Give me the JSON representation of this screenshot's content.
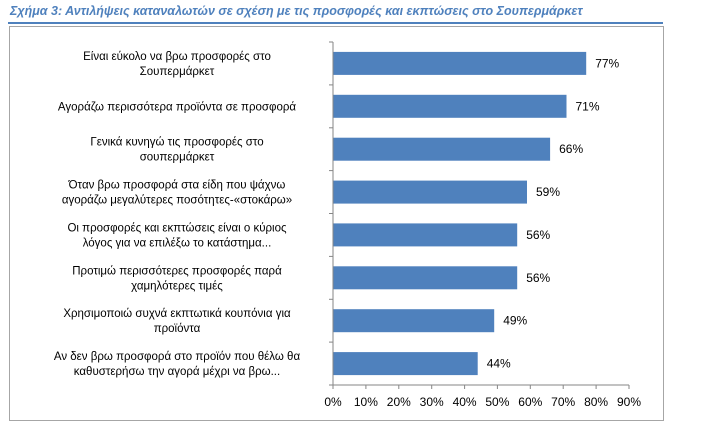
{
  "figure": {
    "title": "Σχήμα 3: Αντιλήψεις καταναλωτών σε σχέση με τις προσφορές και εκπτώσεις στο Σουπερμάρκετ"
  },
  "chart_data": {
    "type": "bar",
    "orientation": "horizontal",
    "categories": [
      [
        "Είναι εύκολο να βρω προσφορές στο",
        "Σουπερμάρκετ"
      ],
      [
        "Αγοράζω περισσότερα προϊόντα σε προσφορά"
      ],
      [
        "Γενικά κυνηγώ τις προσφορές στο",
        "σουπερμάρκετ"
      ],
      [
        "Όταν βρω προσφορά στα είδη που ψάχνω",
        "αγοράζω μεγαλύτερες ποσότητες-«στοκάρω»"
      ],
      [
        "Οι προσφορές και εκπτώσεις είναι ο κύριος",
        "λόγος για να επιλέξω το κατάστημα..."
      ],
      [
        "Προτιμώ περισσότερες προσφορές παρά",
        "χαμηλότερες τιμές"
      ],
      [
        "Χρησιμοποιώ συχνά εκπτωτικά κουπόνια για",
        "προϊόντα"
      ],
      [
        "Αν δεν βρω προσφορά στο προϊόν που θέλω θα",
        "καθυστερήσω την αγορά μέχρι να βρω..."
      ]
    ],
    "values": [
      77,
      71,
      66,
      59,
      56,
      56,
      49,
      44
    ],
    "data_labels": [
      "77%",
      "71%",
      "66%",
      "59%",
      "56%",
      "56%",
      "49%",
      "44%"
    ],
    "xlim": [
      0,
      90
    ],
    "x_ticks": [
      0,
      10,
      20,
      30,
      40,
      50,
      60,
      70,
      80,
      90
    ],
    "x_tick_labels": [
      "0%",
      "10%",
      "20%",
      "30%",
      "40%",
      "50%",
      "60%",
      "70%",
      "80%",
      "90%"
    ],
    "grid": false,
    "legend": false,
    "colors": {
      "bar": "#4f81bd",
      "title": "#4f81bd",
      "axis": "#868686",
      "text": "#000000"
    }
  }
}
